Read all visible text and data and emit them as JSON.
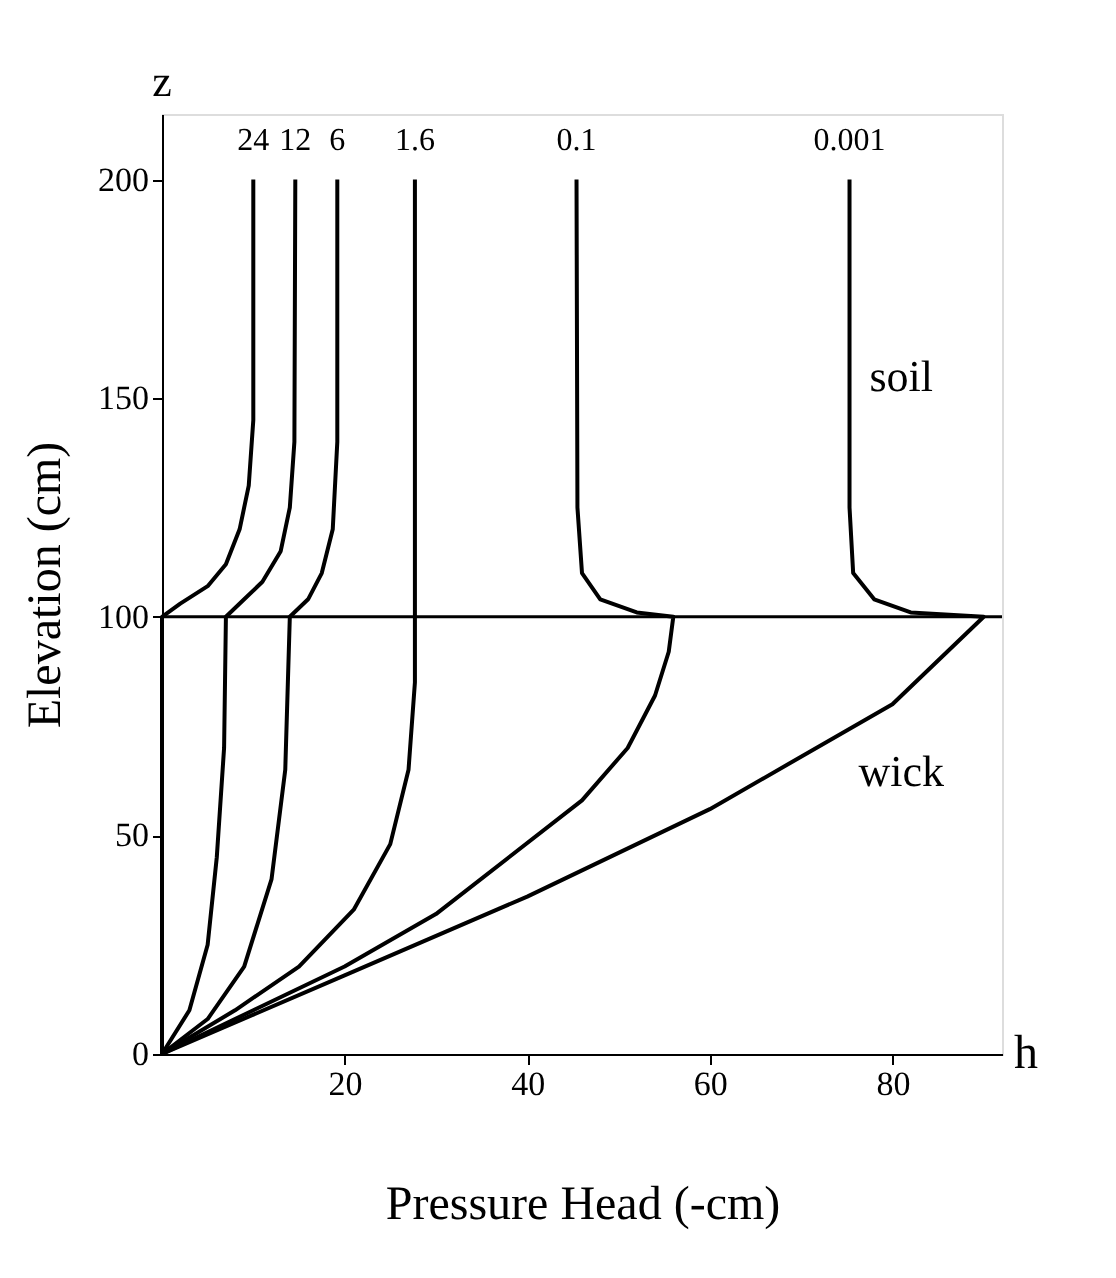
{
  "chart_data": {
    "type": "line",
    "xlabel": "Pressure Head (-cm)",
    "ylabel": "Elevation (cm)",
    "xlim": [
      0,
      92
    ],
    "ylim": [
      0,
      215
    ],
    "xticks": [
      20,
      40,
      60,
      80
    ],
    "yticks": [
      0,
      50,
      100,
      150,
      200
    ],
    "grid": false,
    "legend": false,
    "marker": "none",
    "line_style": "solid",
    "series": [
      {
        "name": "24",
        "color": "#000000",
        "x": [
          0,
          0,
          2,
          5,
          7,
          8.5,
          9.5,
          10,
          10
        ],
        "values": [
          0,
          100,
          103,
          107,
          112,
          120,
          130,
          145,
          200
        ]
      },
      {
        "name": "12",
        "color": "#000000",
        "x": [
          0,
          3,
          5,
          6,
          6.8,
          7,
          9,
          11,
          13,
          14,
          14.5,
          14.6
        ],
        "values": [
          0,
          10,
          25,
          45,
          70,
          100,
          104,
          108,
          115,
          125,
          140,
          200
        ]
      },
      {
        "name": "6",
        "color": "#000000",
        "x": [
          0,
          5,
          9,
          12,
          13.5,
          14,
          16,
          17.5,
          18.7,
          19.2,
          19.2
        ],
        "values": [
          0,
          8,
          20,
          40,
          65,
          100,
          104,
          110,
          120,
          140,
          200
        ]
      },
      {
        "name": "1.6",
        "color": "#000000",
        "x": [
          0,
          8,
          15,
          21,
          25,
          27,
          27.7,
          27.7
        ],
        "values": [
          0,
          10,
          20,
          33,
          48,
          65,
          85,
          200
        ]
      },
      {
        "name": "0.1",
        "color": "#000000",
        "x": [
          0,
          10,
          20,
          30,
          38,
          46,
          51,
          54,
          55.5,
          56,
          52,
          48,
          46,
          45.5,
          45.4
        ],
        "values": [
          0,
          10,
          20,
          32,
          45,
          58,
          70,
          82,
          92,
          100,
          101,
          104,
          110,
          125,
          200
        ]
      },
      {
        "name": "0.001",
        "color": "#000000",
        "x": [
          0,
          20,
          40,
          60,
          80,
          90,
          82,
          78,
          75.7,
          75.3,
          75.3
        ],
        "values": [
          0,
          18,
          36,
          56,
          80,
          100,
          101,
          104,
          110,
          125,
          200
        ]
      }
    ],
    "ref_lines": [
      {
        "axis": "y",
        "value": 100,
        "color": "#000000"
      }
    ],
    "annotations": [
      "z",
      "h",
      "soil",
      "wick"
    ]
  }
}
